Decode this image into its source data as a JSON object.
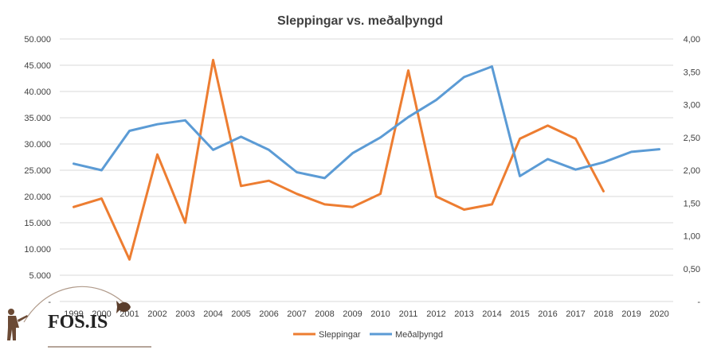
{
  "chart_data": {
    "type": "line",
    "title": "Sleppingar vs. meðalþyngd",
    "categories": [
      "1999",
      "2000",
      "2001",
      "2002",
      "2003",
      "2004",
      "2005",
      "2006",
      "2007",
      "2008",
      "2009",
      "2010",
      "2011",
      "2012",
      "2013",
      "2014",
      "2015",
      "2016",
      "2017",
      "2018",
      "2019",
      "2020"
    ],
    "y_left": {
      "min": 0,
      "max": 50000,
      "step": 5000,
      "tick_labels": [
        "-",
        "5.000",
        "10.000",
        "15.000",
        "20.000",
        "25.000",
        "30.000",
        "35.000",
        "40.000",
        "45.000",
        "50.000"
      ]
    },
    "y_right": {
      "min": 0,
      "max": 4,
      "step": 0.5,
      "tick_labels": [
        "-",
        "0,50",
        "1,00",
        "1,50",
        "2,00",
        "2,50",
        "3,00",
        "3,50",
        "4,00"
      ]
    },
    "series": [
      {
        "name": "Sleppingar",
        "axis": "left",
        "color": "#ED7D31",
        "values": [
          18000,
          19600,
          8000,
          28000,
          15000,
          46000,
          22000,
          23000,
          20500,
          18500,
          18000,
          20500,
          44000,
          20000,
          17500,
          18500,
          31000,
          33500,
          31000,
          21000,
          null,
          null
        ]
      },
      {
        "name": "Meðalþyngd",
        "axis": "right",
        "color": "#5B9BD5",
        "values": [
          2.1,
          2.0,
          2.6,
          2.7,
          2.76,
          2.31,
          2.51,
          2.31,
          1.97,
          1.88,
          2.26,
          2.5,
          2.81,
          3.07,
          3.42,
          3.58,
          1.91,
          2.17,
          2.01,
          2.12,
          2.28,
          2.32
        ]
      }
    ],
    "legend_position": "bottom",
    "gridlines": true
  },
  "watermark": {
    "text": "FOS.IS"
  }
}
